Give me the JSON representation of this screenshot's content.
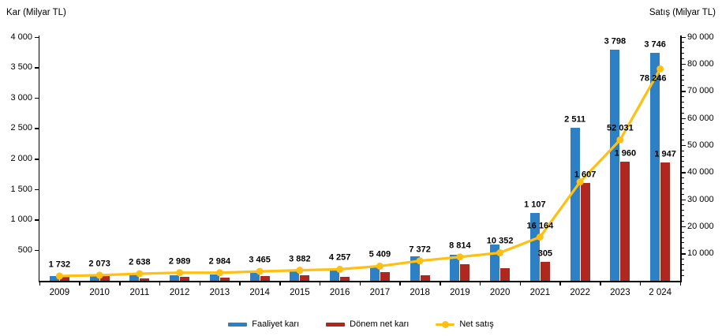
{
  "axes": {
    "left_title": "Kar (Milyar TL)",
    "right_title": "Satış (Milyar TL)",
    "left_tick_values": [
      4000,
      3500,
      3000,
      2500,
      2000,
      1500,
      1000,
      500
    ],
    "left_tick_labels": [
      "4 000",
      "3 500",
      "3 000",
      "2 500",
      "2 000",
      "1 500",
      "1 000",
      "500"
    ],
    "right_tick_values": [
      90000,
      80000,
      70000,
      60000,
      50000,
      40000,
      30000,
      20000,
      10000
    ],
    "right_tick_labels": [
      "90 000",
      "80 000",
      "70 000",
      "60 000",
      "50 000",
      "40 000",
      "30 000",
      "20 000",
      "10 000"
    ],
    "right_minor_step": 2000
  },
  "chart_data": {
    "type": "combo bar+line",
    "title": "",
    "categories": [
      "2009",
      "2010",
      "2011",
      "2012",
      "2013",
      "2014",
      "2015",
      "2016",
      "2017",
      "2018",
      "2019",
      "2020",
      "2021",
      "2022",
      "2023",
      "2 024"
    ],
    "left_axis": {
      "label": "Kar (Milyar TL)",
      "range": [
        0,
        4000
      ],
      "tick_step": 500
    },
    "right_axis": {
      "label": "Satış (Milyar TL)",
      "range": [
        0,
        90000
      ],
      "tick_step": 10000
    },
    "grid": false,
    "legend_position": "bottom",
    "series": [
      {
        "name": "Faaliyet karı",
        "type": "bar",
        "axis": "left",
        "color": "#2E80C4",
        "values": [
          75,
          90,
          100,
          95,
          105,
          130,
          150,
          170,
          250,
          405,
          430,
          600,
          1107,
          2511,
          3798,
          3746
        ],
        "labels": [
          null,
          null,
          null,
          null,
          null,
          null,
          null,
          null,
          null,
          null,
          null,
          null,
          "1 107",
          "2 511",
          "3 798",
          "3 746"
        ]
      },
      {
        "name": "Dönem net karı",
        "type": "bar",
        "axis": "left",
        "color": "#B0271F",
        "values": [
          60,
          80,
          40,
          70,
          50,
          75,
          85,
          65,
          145,
          85,
          270,
          210,
          305,
          1607,
          1960,
          1947
        ],
        "labels": [
          null,
          null,
          null,
          null,
          null,
          null,
          null,
          null,
          null,
          null,
          null,
          null,
          "305",
          "1 607",
          "1 960",
          "1 947"
        ]
      },
      {
        "name": "Net satış",
        "type": "line",
        "axis": "right",
        "color": "#FFC013",
        "values": [
          1732,
          2073,
          2638,
          2989,
          2984,
          3465,
          3882,
          4257,
          5409,
          7372,
          8814,
          10352,
          16164,
          36500,
          52031,
          78246
        ],
        "labels": [
          "1 732",
          "2 073",
          "2 638",
          "2 989",
          "2 984",
          "3 465",
          "3 882",
          "4 257",
          "5 409",
          "7 372",
          "8 814",
          "10 352",
          "16 164",
          null,
          "52 031",
          "78 246"
        ]
      }
    ],
    "values_note": "Unlabeled 2009–2020 bar values and the 2022 Net satış value are estimated from bar/line pixel positions; all labeled values transcribed exactly."
  },
  "legend": {
    "items": [
      {
        "label": "Faaliyet karı",
        "marker": "bar",
        "color": "#2E80C4"
      },
      {
        "label": "Dönem net karı",
        "marker": "bar",
        "color": "#B0271F"
      },
      {
        "label": "Net satış",
        "marker": "line-dot",
        "color": "#FFC013"
      }
    ]
  }
}
